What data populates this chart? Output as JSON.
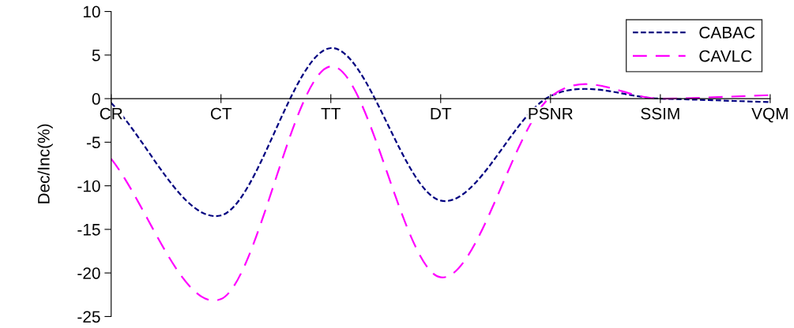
{
  "chart_data": {
    "type": "line",
    "ylabel": "Dec/Inc(%)",
    "categories": [
      "CR",
      "CT",
      "TT",
      "DT",
      "PSNR",
      "SSIM",
      "VQM"
    ],
    "series": [
      {
        "name": "CABAC",
        "color": "#000080",
        "line_style": "dotted",
        "values": [
          -0.5,
          -13.4,
          5.8,
          -11.7,
          0.3,
          0,
          -0.4
        ]
      },
      {
        "name": "CAVLC",
        "color": "#ff00ff",
        "line_style": "dashed",
        "values": [
          -6.9,
          -23,
          3.7,
          -20.5,
          0.2,
          0,
          0.4
        ]
      }
    ],
    "ylim": [
      -25,
      10
    ],
    "yticks": [
      -25,
      -20,
      -15,
      -10,
      -5,
      0,
      5,
      10
    ],
    "legend": "top right",
    "grid": false,
    "marker": "none"
  }
}
